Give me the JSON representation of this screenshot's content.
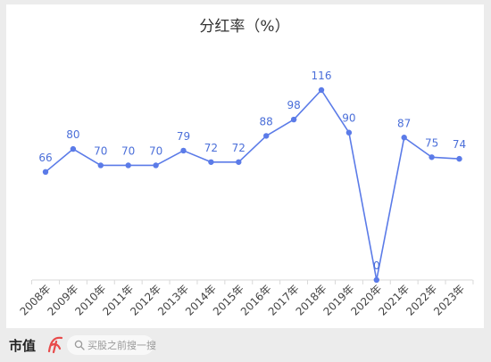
{
  "chart_data": {
    "type": "line",
    "title": "分红率（%）",
    "categories": [
      "2008年",
      "2009年",
      "2010年",
      "2011年",
      "2012年",
      "2013年",
      "2014年",
      "2015年",
      "2016年",
      "2017年",
      "2018年",
      "2019年",
      "2020年",
      "2021年",
      "2022年",
      "2023年"
    ],
    "series": [
      {
        "values": [
          66,
          80,
          70,
          70,
          70,
          79,
          72,
          72,
          88,
          98,
          116,
          90,
          0,
          87,
          75,
          74
        ]
      }
    ],
    "data_labels": [
      "66",
      "80",
      "70",
      "70",
      "70",
      "79",
      "72",
      "72",
      "88",
      "98",
      "116",
      "90",
      "0",
      "87",
      "75",
      "74"
    ],
    "xlabel": "",
    "ylabel": "",
    "ylim": [
      0,
      116
    ],
    "grid": false,
    "legend": "none",
    "colors": {
      "line": "#5b7be8",
      "label": "#4b6fd9",
      "title": "#333333",
      "axis": "#444444"
    }
  },
  "footer": {
    "brand": "市值",
    "search_placeholder": "买股之前搜一搜",
    "brand_accent_color": "#e84a4a"
  }
}
